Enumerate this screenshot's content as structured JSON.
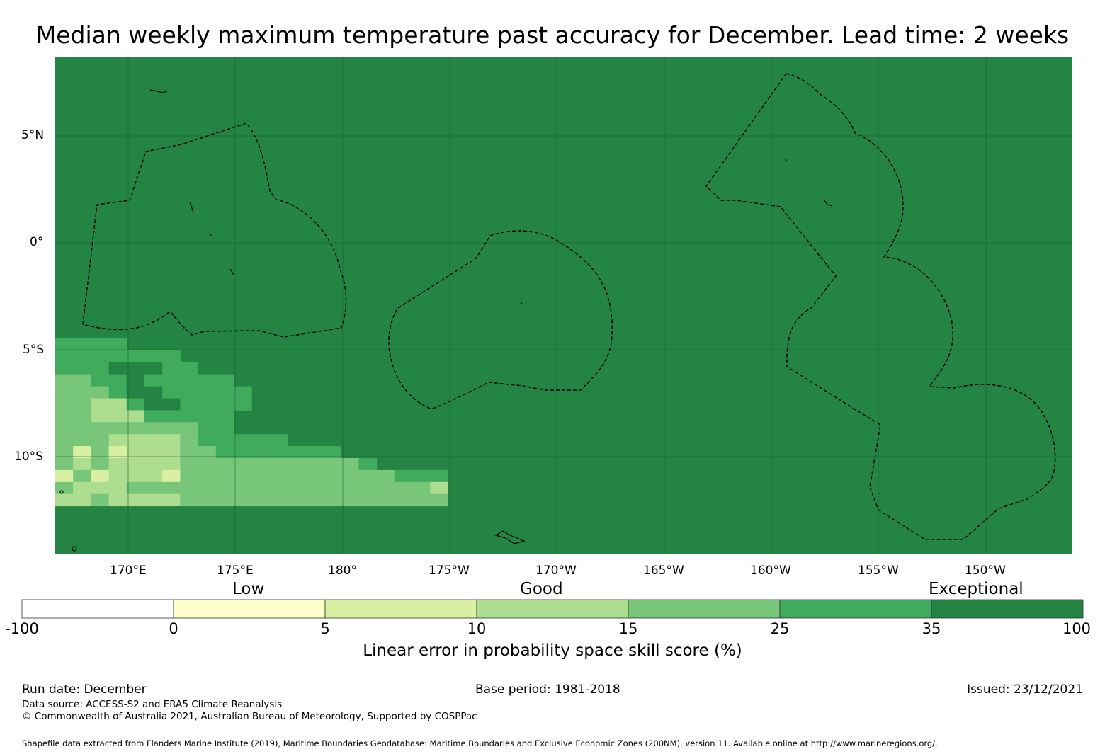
{
  "title": "Median weekly maximum temperature past accuracy for December. Lead time: 2 weeks",
  "map": {
    "lat_labels": [
      "5°N",
      "0°",
      "5°S",
      "10°S"
    ],
    "lon_labels": [
      "170°E",
      "175°E",
      "180°",
      "175°W",
      "170°W",
      "165°W",
      "160°W",
      "155°W",
      "150°W"
    ],
    "background_color": "#238443"
  },
  "legend": {
    "categories": [
      "Low",
      "Good",
      "Exceptional"
    ],
    "ticks": [
      "-100",
      "0",
      "5",
      "10",
      "15",
      "25",
      "35",
      "100"
    ],
    "colors": [
      "#ffffff",
      "#ffffcc",
      "#d9f0a3",
      "#addd8e",
      "#78c679",
      "#41ab5d",
      "#238443"
    ],
    "title": "Linear error in probability space skill score (%)"
  },
  "footer": {
    "run_date": "Run date: December",
    "base_period": "Base period: 1981-2018",
    "issued": "Issued: 23/12/2021",
    "data_source": "Data source: ACCESS-S2 and ERA5 Climate Reanalysis",
    "copyright": "© Commonwealth of Australia 2021, Australian Bureau of Meteorology, Supported by COSPPac",
    "shapefile": "Shapefile data extracted from Flanders Marine Institute (2019), Maritime Boundaries Geodatabase: Maritime Boundaries and Exclusive Economic Zones (200NM), version 11. Available online at http://www.marineregions.org/."
  }
}
